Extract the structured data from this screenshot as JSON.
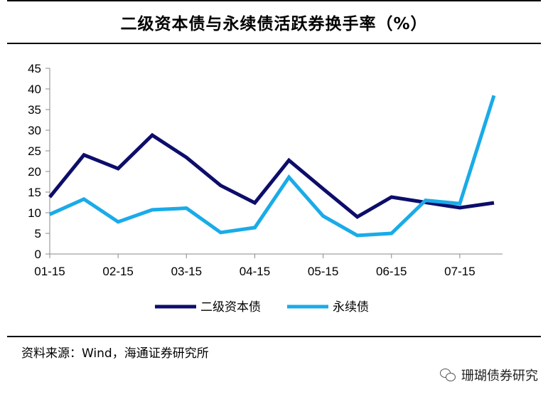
{
  "title": "二级资本债与永续债活跃券换手率（%）",
  "source": "资料来源：Wind，海通证券研究所",
  "watermark": "珊瑚债券研究",
  "chart_data": {
    "type": "line",
    "title": "二级资本债与永续债活跃券换手率（%）",
    "xlabel": "",
    "ylabel": "",
    "ylim": [
      0,
      45
    ],
    "yticks": [
      0,
      5,
      10,
      15,
      20,
      25,
      30,
      35,
      40,
      45
    ],
    "x": [
      0,
      1,
      2,
      3,
      4,
      5,
      6,
      7,
      8,
      9,
      10,
      11,
      12,
      13
    ],
    "x_tick_labels": [
      {
        "label": "01-15",
        "x": 0
      },
      {
        "label": "02-15",
        "x": 2
      },
      {
        "label": "03-15",
        "x": 4
      },
      {
        "label": "04-15",
        "x": 6
      },
      {
        "label": "05-15",
        "x": 8
      },
      {
        "label": "06-15",
        "x": 10
      },
      {
        "label": "07-15",
        "x": 12
      }
    ],
    "grid": false,
    "legend": "bottom-center",
    "series": [
      {
        "name": "二级资本债",
        "color": "#0d0d6b",
        "values": [
          13.8,
          24.0,
          20.7,
          28.8,
          23.4,
          16.6,
          12.4,
          22.7,
          15.8,
          9.0,
          13.8,
          12.5,
          11.2,
          12.4
        ]
      },
      {
        "name": "永续债",
        "color": "#1aabe8",
        "values": [
          9.6,
          13.3,
          7.8,
          10.7,
          11.1,
          5.2,
          6.4,
          18.6,
          9.2,
          4.5,
          5.0,
          13.0,
          12.2,
          38.4
        ]
      }
    ]
  }
}
